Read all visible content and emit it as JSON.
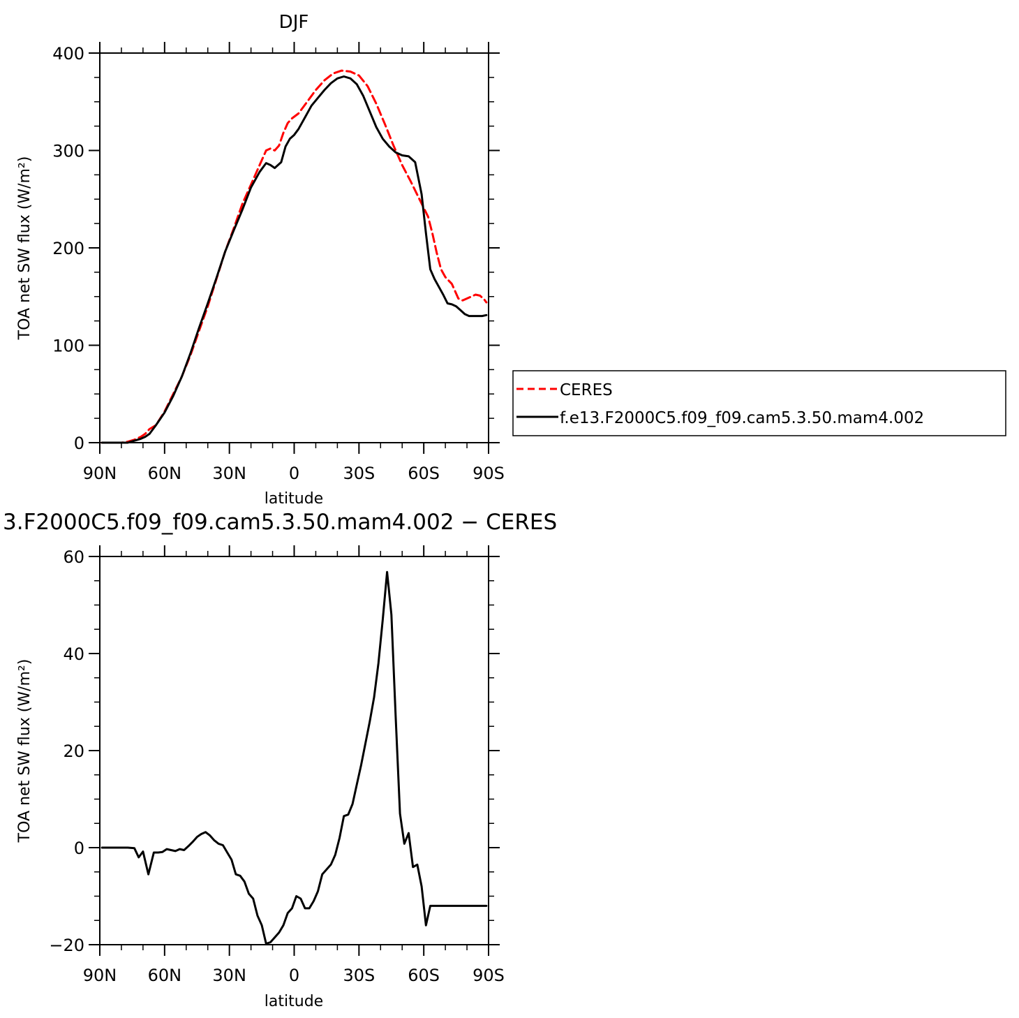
{
  "chart_data": [
    {
      "type": "line",
      "title": "DJF",
      "xlabel": "latitude",
      "ylabel": "TOA net SW flux (W/m²)",
      "xlim": [
        90,
        -90
      ],
      "ylim": [
        0,
        400
      ],
      "x_ticks": [
        90,
        60,
        30,
        0,
        -30,
        -60,
        -90
      ],
      "x_tick_labels": [
        "90N",
        "60N",
        "30N",
        "0",
        "30S",
        "60S",
        "90S"
      ],
      "y_ticks": [
        0,
        100,
        200,
        300,
        400
      ],
      "y_tick_labels": [
        "0",
        "100",
        "200",
        "300",
        "400"
      ],
      "legend_position": "right",
      "series": [
        {
          "name": "CERES",
          "color": "#ff0000",
          "dash": "dashed",
          "x": [
            89,
            86,
            83,
            80,
            77,
            74,
            71,
            69,
            67,
            64,
            60,
            56,
            52,
            48,
            44,
            40,
            36,
            32,
            28,
            24,
            20,
            16,
            13,
            11,
            9,
            7,
            5,
            3,
            1,
            -2,
            -6,
            -10,
            -14,
            -18,
            -22,
            -26,
            -30,
            -34,
            -38,
            -42,
            -46,
            -50,
            -54,
            -58,
            -62,
            -64,
            -66,
            -68,
            -70,
            -73,
            -76,
            -78,
            -80,
            -82,
            -84,
            -86,
            -88,
            -89
          ],
          "y": [
            0,
            0,
            0,
            0,
            1,
            3,
            6,
            9,
            14,
            18,
            32,
            50,
            68,
            90,
            115,
            140,
            168,
            196,
            220,
            245,
            265,
            285,
            300,
            302,
            300,
            305,
            318,
            328,
            333,
            338,
            350,
            362,
            372,
            379,
            382,
            381,
            377,
            366,
            348,
            327,
            305,
            285,
            268,
            250,
            232,
            215,
            195,
            178,
            170,
            163,
            148,
            146,
            148,
            150,
            152,
            151,
            147,
            144
          ]
        },
        {
          "name": "f.e13.F2000C5.f09_f09.cam5.3.50.mam4.002",
          "color": "#000000",
          "dash": "solid",
          "x": [
            89,
            86,
            83,
            80,
            77,
            74,
            71,
            69,
            67,
            64,
            60,
            56,
            52,
            48,
            44,
            40,
            36,
            32,
            28,
            24,
            20,
            16,
            13,
            11,
            9,
            6,
            4,
            2,
            0,
            -2,
            -5,
            -8,
            -11,
            -14,
            -17,
            -20,
            -23,
            -26,
            -29,
            -32,
            -35,
            -38,
            -41,
            -44,
            -47,
            -50,
            -53,
            -56,
            -59,
            -61,
            -63,
            -65,
            -67,
            -69,
            -71,
            -73,
            -75,
            -77,
            -79,
            -81,
            -83,
            -85,
            -87,
            -89
          ],
          "y": [
            0,
            0,
            0,
            0,
            0,
            2,
            4,
            6,
            9,
            18,
            31,
            48,
            68,
            92,
            118,
            143,
            169,
            196,
            218,
            239,
            262,
            278,
            287,
            285,
            282,
            288,
            304,
            312,
            316,
            322,
            334,
            346,
            354,
            362,
            369,
            374,
            376,
            374,
            368,
            356,
            340,
            324,
            312,
            304,
            298,
            295,
            294,
            288,
            255,
            215,
            178,
            168,
            160,
            152,
            143,
            142,
            140,
            136,
            132,
            130,
            130,
            130,
            130,
            131
          ]
        }
      ]
    },
    {
      "type": "line",
      "title": "3.F2000C5.f09_f09.cam5.3.50.mam4.002 − CERES",
      "xlabel": "latitude",
      "ylabel": "TOA net SW flux (W/m²)",
      "xlim": [
        90,
        -90
      ],
      "ylim": [
        -20,
        60
      ],
      "x_ticks": [
        90,
        60,
        30,
        0,
        -30,
        -60,
        -90
      ],
      "x_tick_labels": [
        "90N",
        "60N",
        "30N",
        "0",
        "30S",
        "60S",
        "90S"
      ],
      "y_ticks": [
        -20,
        0,
        20,
        40,
        60
      ],
      "y_tick_labels": [
        "−20",
        "0",
        "20",
        "40",
        "60"
      ],
      "series": [
        {
          "color": "#000000",
          "dash": "solid",
          "x": [
            89,
            86,
            83,
            80,
            77,
            74,
            72,
            70,
            67.5,
            65,
            63,
            61,
            59,
            57,
            55,
            53,
            51,
            49,
            47,
            45,
            43,
            41,
            39,
            37,
            35,
            33,
            31,
            29,
            27,
            25,
            23,
            21,
            19,
            17,
            15,
            13,
            11,
            9,
            7,
            5,
            3,
            1,
            -1,
            -3,
            -5,
            -7,
            -9,
            -11,
            -13,
            -15,
            -17,
            -19,
            -21,
            -23,
            -25,
            -27,
            -29,
            -31,
            -33,
            -35,
            -37,
            -39,
            -41,
            -43,
            -45,
            -47,
            -49,
            -51,
            -53,
            -55,
            -57,
            -59,
            -61,
            -63,
            -65,
            -67,
            -69,
            -71,
            -73,
            -75,
            -77,
            -79,
            -81,
            -83,
            -85,
            -87,
            -89
          ],
          "y": [
            0,
            0,
            0,
            0,
            0,
            -0.1,
            -2,
            -0.8,
            -5.5,
            -1,
            -1,
            -0.9,
            -0.3,
            -0.5,
            -0.7,
            -0.3,
            -0.5,
            0.3,
            1.2,
            2.2,
            2.8,
            3.2,
            2.5,
            1.5,
            0.8,
            0.5,
            -1,
            -2.5,
            -5.5,
            -5.8,
            -7,
            -9.5,
            -10.5,
            -14,
            -16,
            -19.8,
            -19.5,
            -18.5,
            -17.5,
            -16,
            -13.5,
            -12.5,
            -10,
            -10.5,
            -12.5,
            -12.5,
            -11,
            -9,
            -5.5,
            -4.5,
            -3.5,
            -1.5,
            2,
            6.5,
            6.8,
            9,
            13,
            17,
            21.5,
            26,
            31,
            38,
            47,
            56.8,
            48,
            27,
            7,
            0.8,
            3,
            -4,
            -3.5,
            -8,
            -16,
            -12,
            -12,
            -12,
            -12,
            -12,
            -12,
            -12,
            -12,
            -12,
            -12,
            -12,
            -12,
            -12,
            -12
          ]
        }
      ]
    }
  ],
  "legend": {
    "items": [
      {
        "label": "CERES",
        "color": "#ff0000",
        "dash": "dashed"
      },
      {
        "label": "f.e13.F2000C5.f09_f09.cam5.3.50.mam4.002",
        "color": "#000000",
        "dash": "solid"
      }
    ]
  }
}
